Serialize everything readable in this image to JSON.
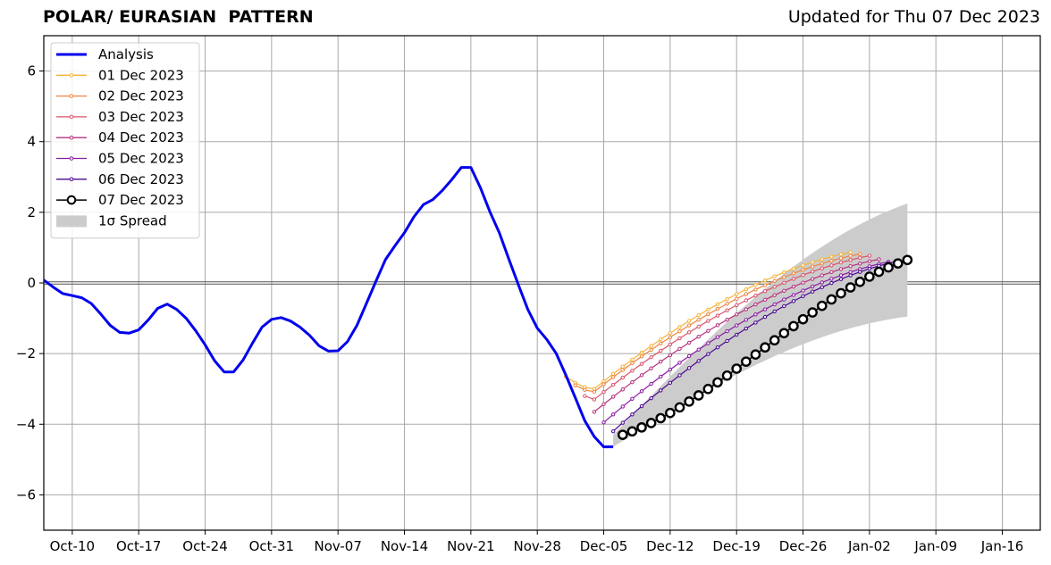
{
  "header": {
    "title": "POLAR/ EURASIAN  PATTERN",
    "subtitle": "Updated for Thu 07 Dec 2023"
  },
  "chart_data": {
    "type": "line",
    "title": "POLAR/ EURASIAN  PATTERN",
    "subtitle": "Updated for Thu 07 Dec 2023",
    "xlabel": "",
    "ylabel": "",
    "x_start_date": "2023-10-07",
    "xlim": [
      "2023-10-07",
      "2024-01-20"
    ],
    "ylim": [
      -7,
      7
    ],
    "grid": true,
    "legend_position": "top-left",
    "x_ticks": [
      {
        "date": "2023-10-10",
        "label": "Oct-10"
      },
      {
        "date": "2023-10-17",
        "label": "Oct-17"
      },
      {
        "date": "2023-10-24",
        "label": "Oct-24"
      },
      {
        "date": "2023-10-31",
        "label": "Oct-31"
      },
      {
        "date": "2023-11-07",
        "label": "Nov-07"
      },
      {
        "date": "2023-11-14",
        "label": "Nov-14"
      },
      {
        "date": "2023-11-21",
        "label": "Nov-21"
      },
      {
        "date": "2023-11-28",
        "label": "Nov-28"
      },
      {
        "date": "2023-12-05",
        "label": "Dec-05"
      },
      {
        "date": "2023-12-12",
        "label": "Dec-12"
      },
      {
        "date": "2023-12-19",
        "label": "Dec-19"
      },
      {
        "date": "2023-12-26",
        "label": "Dec-26"
      },
      {
        "date": "2024-01-02",
        "label": "Jan-02"
      },
      {
        "date": "2024-01-09",
        "label": "Jan-09"
      },
      {
        "date": "2024-01-16",
        "label": "Jan-16"
      }
    ],
    "y_ticks": [
      {
        "value": -6,
        "label": "−6"
      },
      {
        "value": -4,
        "label": "−4"
      },
      {
        "value": -2,
        "label": "−2"
      },
      {
        "value": 0,
        "label": "0"
      },
      {
        "value": 2,
        "label": "2"
      },
      {
        "value": 4,
        "label": "4"
      },
      {
        "value": 6,
        "label": "6"
      }
    ],
    "analysis": {
      "name": "Analysis",
      "color": "#0000ee",
      "points": [
        [
          "2023-10-07",
          0.08
        ],
        [
          "2023-10-08",
          -0.12
        ],
        [
          "2023-10-09",
          -0.3
        ],
        [
          "2023-10-10",
          -0.36
        ],
        [
          "2023-10-11",
          -0.42
        ],
        [
          "2023-10-12",
          -0.58
        ],
        [
          "2023-10-13",
          -0.88
        ],
        [
          "2023-10-14",
          -1.2
        ],
        [
          "2023-10-15",
          -1.4
        ],
        [
          "2023-10-16",
          -1.42
        ],
        [
          "2023-10-17",
          -1.33
        ],
        [
          "2023-10-18",
          -1.05
        ],
        [
          "2023-10-19",
          -0.72
        ],
        [
          "2023-10-20",
          -0.6
        ],
        [
          "2023-10-21",
          -0.75
        ],
        [
          "2023-10-22",
          -1.0
        ],
        [
          "2023-10-23",
          -1.35
        ],
        [
          "2023-10-24",
          -1.75
        ],
        [
          "2023-10-25",
          -2.2
        ],
        [
          "2023-10-26",
          -2.52
        ],
        [
          "2023-10-27",
          -2.52
        ],
        [
          "2023-10-28",
          -2.18
        ],
        [
          "2023-10-29",
          -1.7
        ],
        [
          "2023-10-30",
          -1.25
        ],
        [
          "2023-10-31",
          -1.03
        ],
        [
          "2023-11-01",
          -0.98
        ],
        [
          "2023-11-02",
          -1.08
        ],
        [
          "2023-11-03",
          -1.25
        ],
        [
          "2023-11-04",
          -1.48
        ],
        [
          "2023-11-05",
          -1.78
        ],
        [
          "2023-11-06",
          -1.93
        ],
        [
          "2023-11-07",
          -1.92
        ],
        [
          "2023-11-08",
          -1.66
        ],
        [
          "2023-11-09",
          -1.2
        ],
        [
          "2023-11-10",
          -0.58
        ],
        [
          "2023-11-11",
          0.05
        ],
        [
          "2023-11-12",
          0.66
        ],
        [
          "2023-11-13",
          1.05
        ],
        [
          "2023-11-14",
          1.42
        ],
        [
          "2023-11-15",
          1.87
        ],
        [
          "2023-11-16",
          2.22
        ],
        [
          "2023-11-17",
          2.36
        ],
        [
          "2023-11-18",
          2.62
        ],
        [
          "2023-11-19",
          2.93
        ],
        [
          "2023-11-20",
          3.27
        ],
        [
          "2023-11-21",
          3.27
        ],
        [
          "2023-11-22",
          2.7
        ],
        [
          "2023-11-23",
          2.02
        ],
        [
          "2023-11-24",
          1.42
        ],
        [
          "2023-11-25",
          0.68
        ],
        [
          "2023-11-26",
          -0.05
        ],
        [
          "2023-11-27",
          -0.75
        ],
        [
          "2023-11-28",
          -1.28
        ],
        [
          "2023-11-29",
          -1.6
        ],
        [
          "2023-11-30",
          -2.0
        ],
        [
          "2023-12-01",
          -2.6
        ],
        [
          "2023-12-02",
          -3.25
        ],
        [
          "2023-12-03",
          -3.9
        ],
        [
          "2023-12-04",
          -4.35
        ],
        [
          "2023-12-05",
          -4.64
        ],
        [
          "2023-12-06",
          -4.64
        ]
      ]
    },
    "spread": {
      "name": "1σ Spread",
      "color": "#cccccc",
      "start": "2023-12-06",
      "end": "2024-01-06",
      "upper_start": -4.3,
      "upper_end": 2.25,
      "lower_start": -4.64,
      "lower_end": -0.95
    },
    "forecasts": [
      {
        "name": "01 Dec 2023",
        "color": "#f4b43a",
        "start": "2023-12-01",
        "end": "2023-12-31",
        "y_start": -2.65,
        "y_end": 0.87,
        "dip": -3.0,
        "dip_day": 3,
        "marker": "small"
      },
      {
        "name": "02 Dec 2023",
        "color": "#ee8540",
        "start": "2023-12-02",
        "end": "2024-01-01",
        "y_start": -2.9,
        "y_end": 0.82,
        "dip": -3.08,
        "dip_day": 2,
        "marker": "small"
      },
      {
        "name": "03 Dec 2023",
        "color": "#d9536a",
        "start": "2023-12-03",
        "end": "2024-01-02",
        "y_start": -3.2,
        "y_end": 0.77,
        "dip": -3.3,
        "dip_day": 1,
        "marker": "small"
      },
      {
        "name": "04 Dec 2023",
        "color": "#b7307d",
        "start": "2023-12-04",
        "end": "2024-01-03",
        "y_start": -3.65,
        "y_end": 0.67,
        "dip": -3.65,
        "dip_day": 0,
        "marker": "small"
      },
      {
        "name": "05 Dec 2023",
        "color": "#8a1aa1",
        "start": "2023-12-05",
        "end": "2024-01-04",
        "y_start": -3.95,
        "y_end": 0.6,
        "dip": -3.95,
        "dip_day": 0,
        "marker": "small"
      },
      {
        "name": "06 Dec 2023",
        "color": "#4a0590",
        "start": "2023-12-06",
        "end": "2024-01-05",
        "y_start": -4.2,
        "y_end": 0.62,
        "dip": -4.2,
        "dip_day": 0,
        "marker": "small"
      },
      {
        "name": "07 Dec 2023",
        "color": "#000000",
        "start": "2023-12-07",
        "end": "2024-01-06",
        "y_start": -4.3,
        "y_end": 0.65,
        "dip": -4.3,
        "dip_day": 0,
        "marker": "large"
      }
    ]
  }
}
